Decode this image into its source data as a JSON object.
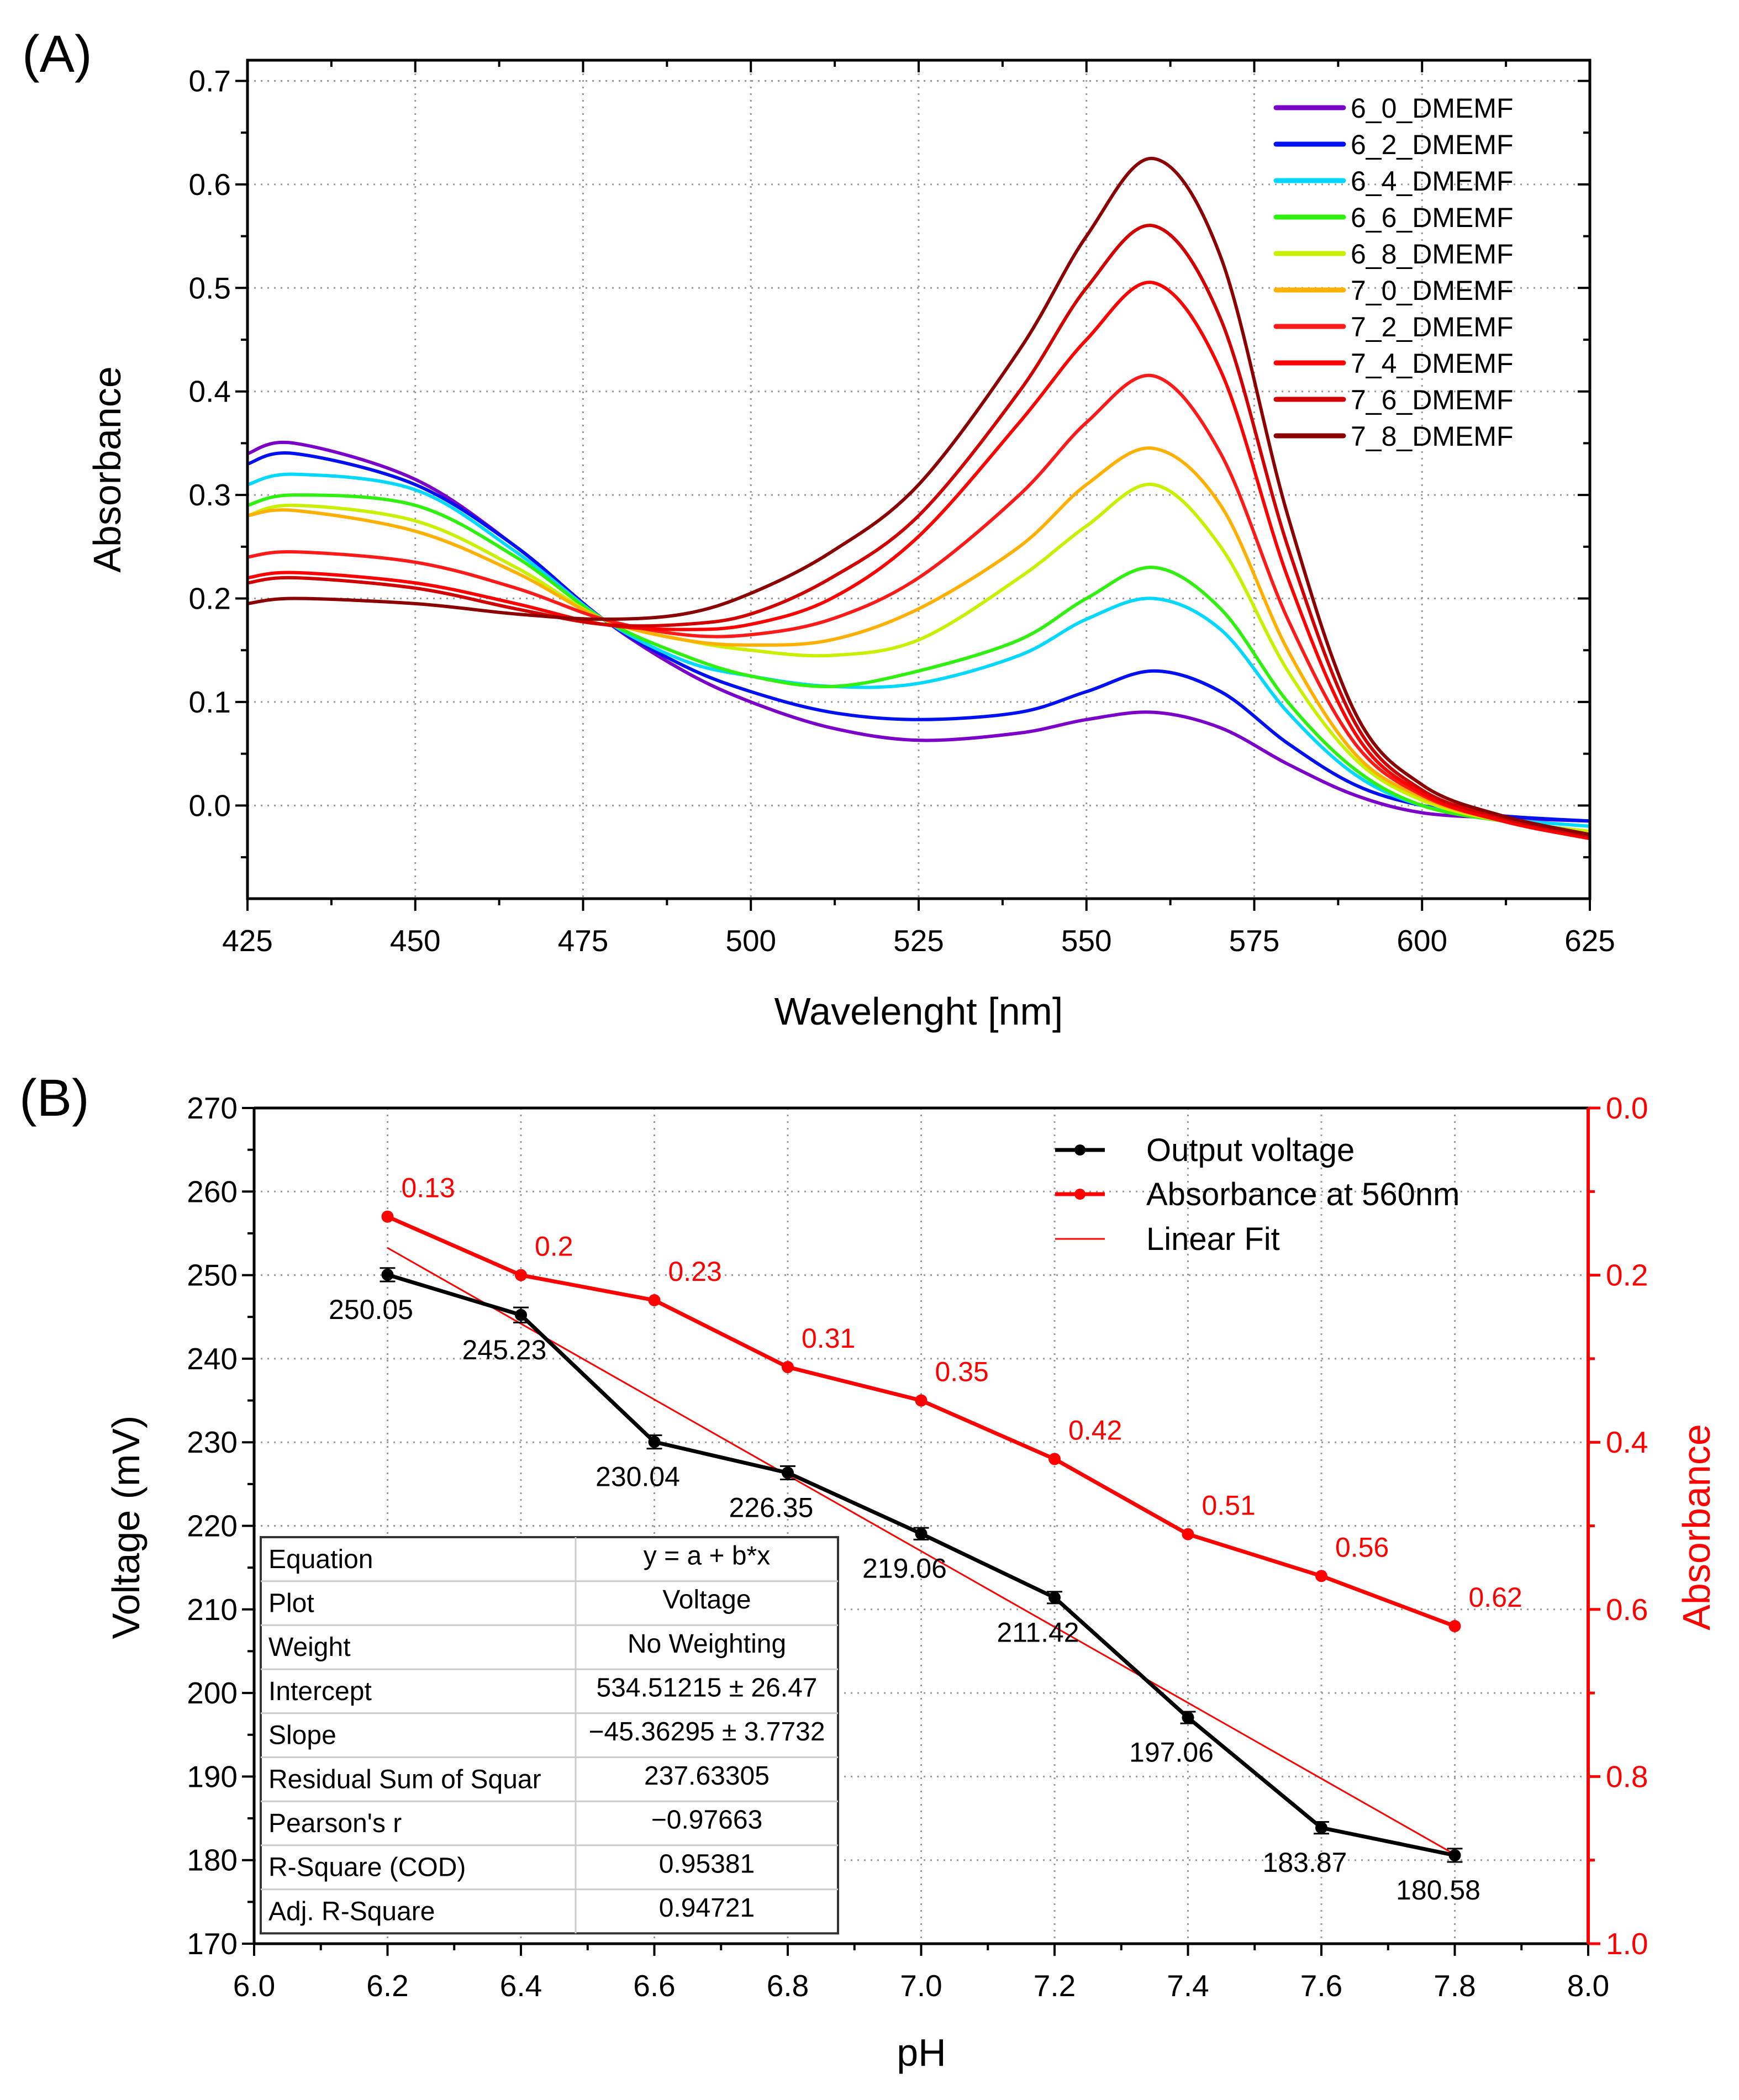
{
  "chart_data": [
    {
      "type": "line",
      "panel_label": "(A)",
      "xlabel": "Wavelenght [nm]",
      "ylabel": "Absorbance",
      "xlim": [
        425,
        625
      ],
      "ylim": [
        -0.09,
        0.72
      ],
      "xticks": [
        425,
        450,
        475,
        500,
        525,
        550,
        575,
        600,
        625
      ],
      "yticks": [
        "0.0",
        "0.1",
        "0.2",
        "0.3",
        "0.4",
        "0.5",
        "0.6",
        "0.7"
      ],
      "grid": true,
      "legend_position": "top-right",
      "x": [
        425,
        432,
        450,
        465,
        478,
        490,
        500,
        512,
        525,
        540,
        550,
        560,
        570,
        580,
        590,
        600,
        612,
        625
      ],
      "series": [
        {
          "name": "6_0_DMEMF",
          "color": "#7b00c8",
          "values": [
            0.34,
            0.35,
            0.315,
            0.25,
            0.18,
            0.13,
            0.1,
            0.075,
            0.063,
            0.07,
            0.083,
            0.09,
            0.075,
            0.04,
            0.01,
            -0.007,
            -0.012,
            -0.015
          ]
        },
        {
          "name": "6_2_DMEMF",
          "color": "#0010f0",
          "values": [
            0.33,
            0.34,
            0.31,
            0.25,
            0.18,
            0.135,
            0.11,
            0.09,
            0.083,
            0.09,
            0.11,
            0.13,
            0.11,
            0.06,
            0.02,
            0.0,
            -0.01,
            -0.015
          ]
        },
        {
          "name": "6_4_DMEMF",
          "color": "#00d8ff",
          "values": [
            0.31,
            0.32,
            0.305,
            0.245,
            0.18,
            0.14,
            0.125,
            0.115,
            0.118,
            0.145,
            0.18,
            0.2,
            0.17,
            0.09,
            0.03,
            0.0,
            -0.013,
            -0.02
          ]
        },
        {
          "name": "6_6_DMEMF",
          "color": "#30f010",
          "values": [
            0.29,
            0.3,
            0.29,
            0.24,
            0.18,
            0.145,
            0.125,
            0.115,
            0.13,
            0.16,
            0.2,
            0.23,
            0.19,
            0.1,
            0.035,
            0.0,
            -0.015,
            -0.025
          ]
        },
        {
          "name": "6_8_DMEMF",
          "color": "#c8f000",
          "values": [
            0.28,
            0.29,
            0.275,
            0.23,
            0.18,
            0.16,
            0.15,
            0.145,
            0.16,
            0.22,
            0.27,
            0.31,
            0.25,
            0.13,
            0.045,
            0.005,
            -0.015,
            -0.025
          ]
        },
        {
          "name": "7_0_DMEMF",
          "color": "#ffb000",
          "values": [
            0.28,
            0.285,
            0.265,
            0.225,
            0.18,
            0.16,
            0.155,
            0.16,
            0.19,
            0.25,
            0.31,
            0.345,
            0.29,
            0.15,
            0.05,
            0.008,
            -0.015,
            -0.028
          ]
        },
        {
          "name": "7_2_DMEMF",
          "color": "#ff1a1a",
          "values": [
            0.24,
            0.245,
            0.235,
            0.21,
            0.18,
            0.165,
            0.165,
            0.18,
            0.22,
            0.3,
            0.37,
            0.415,
            0.34,
            0.18,
            0.06,
            0.01,
            -0.015,
            -0.03
          ]
        },
        {
          "name": "7_4_DMEMF",
          "color": "#ff0000",
          "values": [
            0.22,
            0.225,
            0.215,
            0.195,
            0.175,
            0.17,
            0.175,
            0.2,
            0.26,
            0.37,
            0.45,
            0.505,
            0.42,
            0.22,
            0.07,
            0.012,
            -0.015,
            -0.032
          ]
        },
        {
          "name": "7_6_DMEMF",
          "color": "#d00000",
          "values": [
            0.215,
            0.22,
            0.21,
            0.19,
            0.175,
            0.175,
            0.185,
            0.22,
            0.28,
            0.4,
            0.5,
            0.56,
            0.47,
            0.25,
            0.08,
            0.015,
            -0.012,
            -0.03
          ]
        },
        {
          "name": "7_8_DMEMF",
          "color": "#8b0000",
          "values": [
            0.195,
            0.2,
            0.195,
            0.185,
            0.18,
            0.185,
            0.205,
            0.245,
            0.31,
            0.44,
            0.55,
            0.625,
            0.53,
            0.28,
            0.09,
            0.02,
            -0.01,
            -0.028
          ]
        }
      ]
    },
    {
      "type": "line",
      "panel_label": "(B)",
      "xlabel": "pH",
      "ylabel": "Voltage (mV)",
      "y2label": "Absorbance",
      "xlim": [
        6.0,
        8.0
      ],
      "ylim": [
        170,
        270
      ],
      "y2lim": [
        0.0,
        1.0
      ],
      "y2_reversed": true,
      "xticks": [
        "6.0",
        "6.2",
        "6.4",
        "6.6",
        "6.8",
        "7.0",
        "7.2",
        "7.4",
        "7.6",
        "7.8",
        "8.0"
      ],
      "yticks": [
        "170",
        "180",
        "190",
        "200",
        "210",
        "220",
        "230",
        "240",
        "250",
        "260",
        "270"
      ],
      "y2ticks": [
        "0.0",
        "0.2",
        "0.4",
        "0.6",
        "0.8",
        "1.0"
      ],
      "grid": true,
      "legend_position": "top-right",
      "x": [
        6.2,
        6.4,
        6.6,
        6.8,
        7.0,
        7.2,
        7.4,
        7.6,
        7.8
      ],
      "series": [
        {
          "name": "Output voltage",
          "color": "#000000",
          "axis": "left",
          "values": [
            250.05,
            245.23,
            230.04,
            226.35,
            219.06,
            211.42,
            197.06,
            183.87,
            180.58
          ],
          "labels": [
            "250.05",
            "245.23",
            "230.04",
            "226.35",
            "219.06",
            "211.42",
            "197.06",
            "183.87",
            "180.58"
          ],
          "error": [
            0.8,
            0.9,
            0.8,
            0.8,
            0.7,
            0.7,
            0.7,
            0.7,
            0.8
          ]
        },
        {
          "name": "Absorbance at 560nm",
          "color": "#ff0000",
          "axis": "right",
          "values": [
            0.13,
            0.2,
            0.23,
            0.31,
            0.35,
            0.42,
            0.51,
            0.56,
            0.62
          ],
          "labels": [
            "0.13",
            "0.2",
            "0.23",
            "0.31",
            "0.35",
            "0.42",
            "0.51",
            "0.56",
            "0.62"
          ]
        },
        {
          "name": "Linear Fit",
          "color": "#ff0000",
          "axis": "left",
          "intercept": 534.51215,
          "slope": -45.36295,
          "x_range": [
            6.2,
            7.8
          ]
        }
      ],
      "fit_table": [
        [
          "Equation",
          "y = a + b*x"
        ],
        [
          "Plot",
          "Voltage"
        ],
        [
          "Weight",
          "No Weighting"
        ],
        [
          "Intercept",
          "534.51215 ± 26.47"
        ],
        [
          "Slope",
          "−45.36295 ± 3.7732"
        ],
        [
          "Residual Sum of Squar",
          "237.63305"
        ],
        [
          "Pearson's r",
          "−0.97663"
        ],
        [
          "R-Square (COD)",
          "0.95381"
        ],
        [
          "Adj. R-Square",
          "0.94721"
        ]
      ]
    }
  ]
}
